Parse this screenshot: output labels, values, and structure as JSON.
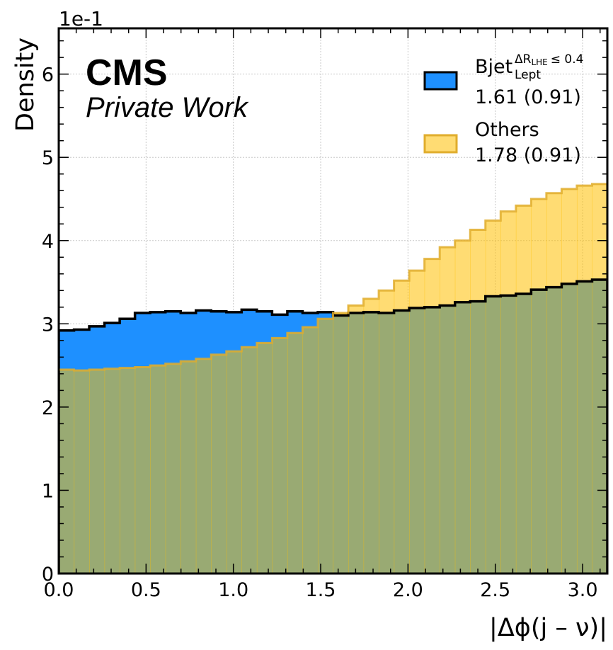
{
  "chart_data": {
    "type": "histogram",
    "ylabel": "Density",
    "xlabel": "|Δϕ(j – ν)|",
    "y_multiplier": "1e-1",
    "xlim": [
      0,
      3.14159
    ],
    "ylim": [
      0,
      6.55
    ],
    "x_ticks": [
      "0.0",
      "0.5",
      "1.0",
      "1.5",
      "2.0",
      "2.5",
      "3.0"
    ],
    "x_tick_values": [
      0,
      0.5,
      1.0,
      1.5,
      2.0,
      2.5,
      3.0
    ],
    "y_ticks": [
      "0",
      "1",
      "2",
      "3",
      "4",
      "5",
      "6"
    ],
    "y_tick_values": [
      0,
      1,
      2,
      3,
      4,
      5,
      6
    ],
    "grid": true,
    "experiment_label": "CMS",
    "experiment_sublabel": "Private Work",
    "n_bins": 36,
    "series": [
      {
        "name": "Bjet",
        "name_superscript": "ΔR",
        "name_superscript_sub": "LHE",
        "name_superscript_tail": "≤ 0.4",
        "name_subscript": "Lept",
        "stat": "1.61 (0.91)",
        "fill": "#1e90ff",
        "edge": "#000000",
        "values": [
          2.92,
          2.93,
          2.97,
          3.01,
          3.06,
          3.13,
          3.14,
          3.15,
          3.13,
          3.16,
          3.15,
          3.14,
          3.17,
          3.15,
          3.11,
          3.15,
          3.13,
          3.14,
          3.1,
          3.13,
          3.14,
          3.13,
          3.16,
          3.19,
          3.2,
          3.22,
          3.26,
          3.27,
          3.33,
          3.34,
          3.36,
          3.41,
          3.44,
          3.48,
          3.51,
          3.53
        ]
      },
      {
        "name": "Others",
        "stat": "1.78 (0.91)",
        "fill": "#ffc000",
        "edge": "#e0ad2c",
        "values": [
          2.45,
          2.44,
          2.45,
          2.46,
          2.47,
          2.48,
          2.5,
          2.52,
          2.55,
          2.58,
          2.63,
          2.67,
          2.72,
          2.77,
          2.83,
          2.89,
          2.96,
          3.06,
          3.13,
          3.22,
          3.3,
          3.4,
          3.52,
          3.64,
          3.78,
          3.92,
          4.0,
          4.13,
          4.24,
          4.35,
          4.42,
          4.5,
          4.57,
          4.62,
          4.66,
          4.68
        ]
      }
    ]
  }
}
